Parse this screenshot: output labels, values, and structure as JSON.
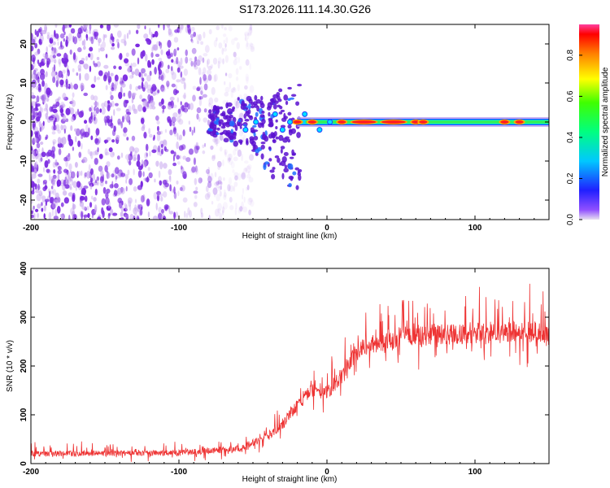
{
  "title": "S173.2026.111.14.30.G26",
  "chart_data": [
    {
      "type": "heatmap",
      "name": "spectrogram",
      "xlabel": "Height of straight line (km)",
      "ylabel": "Frequency (Hz)",
      "xlim": [
        -200,
        150
      ],
      "ylim": [
        -25,
        25
      ],
      "xticks": [
        -200,
        -100,
        0,
        100
      ],
      "yticks": [
        -20,
        -10,
        0,
        10,
        20
      ],
      "colorbar": {
        "label": "Normalized spectral amplitude",
        "range": [
          0.0,
          0.95
        ],
        "ticks": [
          0.0,
          0.2,
          0.4,
          0.6,
          0.8
        ],
        "tick_labels": [
          "0.0",
          "0.2",
          "0.4",
          "0.6",
          "0.8"
        ],
        "colormap": "rainbow"
      },
      "signal_ridge": {
        "x_start": -75,
        "x_end": 150,
        "center_freq_hz": 0,
        "peak_amplitude": 0.9,
        "hot_spots_x": [
          -20,
          -10,
          10,
          25,
          45,
          60,
          65,
          120,
          130
        ]
      },
      "noise_region": {
        "x_start": -200,
        "x_end": -60,
        "amplitude": 0.15
      }
    },
    {
      "type": "line",
      "name": "snr",
      "xlabel": "Height of straight line (km)",
      "ylabel": "SNR (10 * v/v)",
      "xlim": [
        -200,
        150
      ],
      "ylim": [
        0,
        400
      ],
      "xticks": [
        -200,
        -100,
        0,
        100
      ],
      "yticks": [
        0,
        100,
        200,
        300,
        400
      ],
      "color": "#ee3333",
      "trend": [
        {
          "x": -200,
          "y": 20
        },
        {
          "x": -100,
          "y": 22
        },
        {
          "x": -60,
          "y": 30
        },
        {
          "x": -40,
          "y": 55
        },
        {
          "x": -30,
          "y": 80
        },
        {
          "x": -20,
          "y": 120
        },
        {
          "x": -10,
          "y": 150
        },
        {
          "x": 0,
          "y": 145
        },
        {
          "x": 10,
          "y": 180
        },
        {
          "x": 20,
          "y": 230
        },
        {
          "x": 40,
          "y": 255
        },
        {
          "x": 70,
          "y": 265
        },
        {
          "x": 100,
          "y": 268
        },
        {
          "x": 150,
          "y": 270
        }
      ],
      "noise_amplitude": 30
    }
  ]
}
